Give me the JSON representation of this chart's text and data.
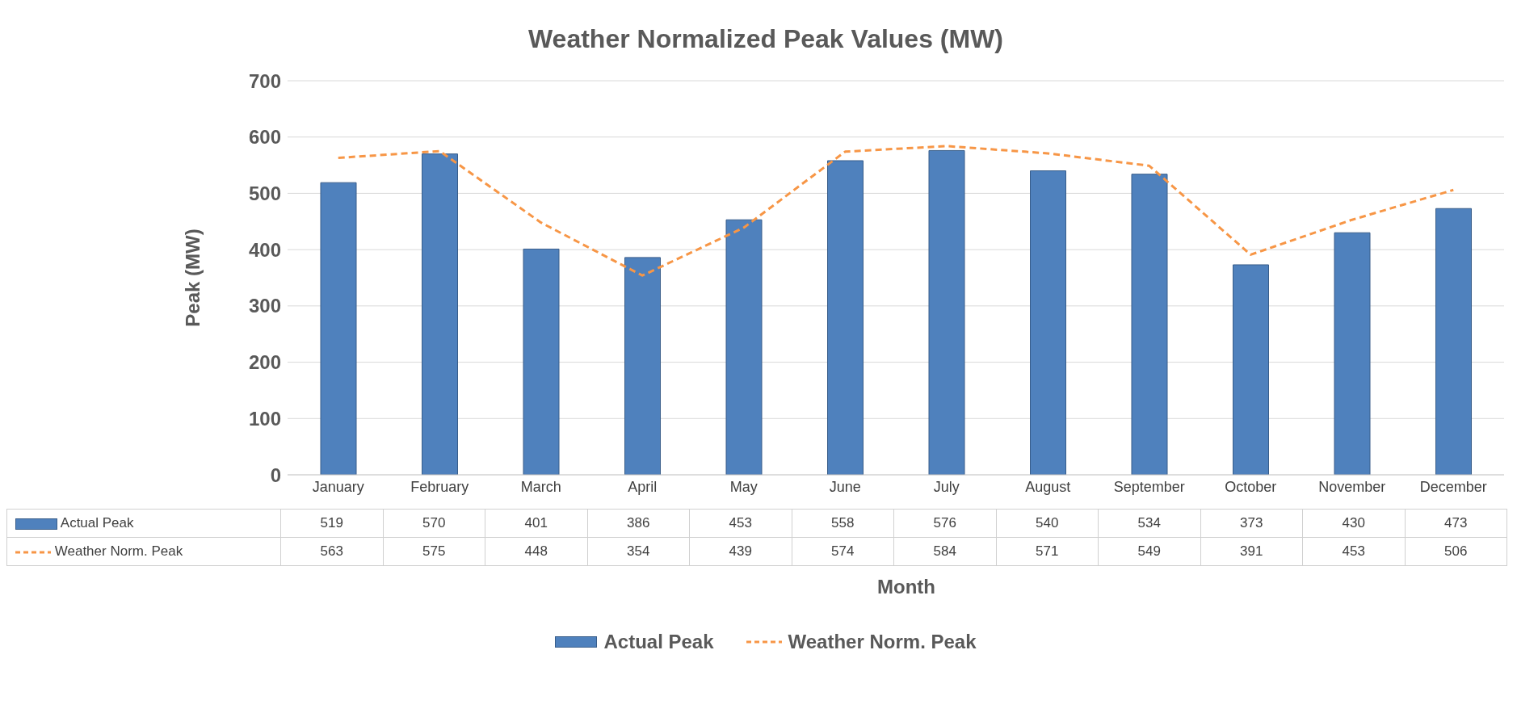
{
  "chart_data": {
    "type": "bar",
    "title": "Weather Normalized Peak Values (MW)",
    "xlabel": "Month",
    "ylabel": "Peak (MW)",
    "categories": [
      "January",
      "February",
      "March",
      "April",
      "May",
      "June",
      "July",
      "August",
      "September",
      "October",
      "November",
      "December"
    ],
    "series": [
      {
        "name": "Actual Peak",
        "color": "#4f81bd",
        "values": [
          519,
          570,
          401,
          386,
          453,
          558,
          576,
          540,
          534,
          373,
          430,
          473
        ]
      },
      {
        "name": "Weather Norm. Peak",
        "type": "line",
        "color": "#f79646",
        "line_style": "dashed",
        "values": [
          563,
          575,
          448,
          354,
          439,
          574,
          584,
          571,
          549,
          391,
          453,
          506
        ]
      }
    ],
    "ylim": [
      0,
      700
    ],
    "yticks": [
      0,
      100,
      200,
      300,
      400,
      500,
      600,
      700
    ],
    "grid": "y",
    "legend": "bottom",
    "data_labels": true,
    "marker": "none"
  }
}
